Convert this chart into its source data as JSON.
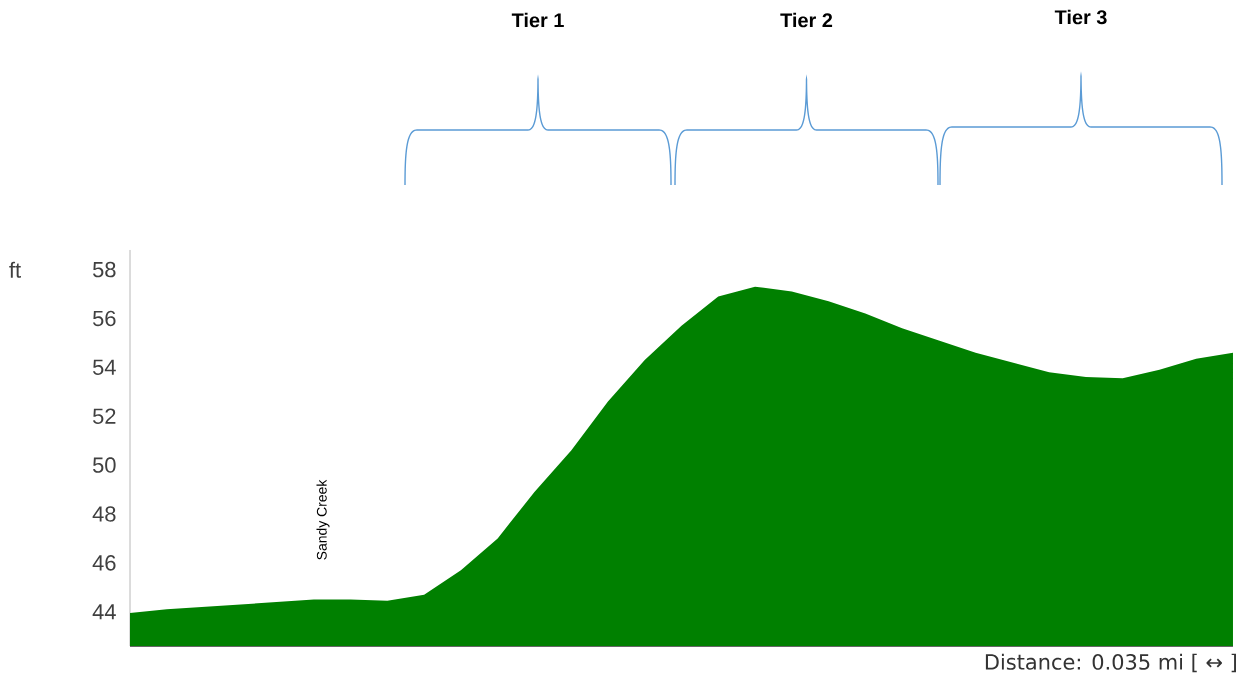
{
  "chart_data": {
    "type": "area",
    "ylabel": "ft",
    "categories": [
      null,
      null,
      null,
      null,
      null,
      null,
      null,
      null,
      null,
      null,
      null,
      null,
      null,
      null,
      null,
      null,
      null,
      null,
      null,
      null,
      null,
      null,
      null,
      null,
      null,
      null,
      null,
      null,
      null,
      null,
      null
    ],
    "values": [
      43.95,
      44.1,
      44.2,
      44.3,
      44.4,
      44.5,
      44.5,
      44.45,
      44.7,
      45.7,
      47.0,
      48.9,
      50.6,
      52.6,
      54.3,
      55.7,
      56.9,
      57.3,
      57.1,
      56.7,
      56.2,
      55.6,
      55.1,
      54.6,
      54.2,
      53.8,
      53.6,
      53.55,
      53.9,
      54.35,
      54.6
    ],
    "color": "#008000",
    "ylim": [
      42.6,
      58.8
    ],
    "yticks": [
      44,
      46,
      48,
      50,
      52,
      54,
      56,
      58
    ],
    "tick_labels": "y",
    "annotations": [
      "Tier 1",
      "Tier 2",
      "Tier 3",
      "Sandy Creek",
      "Distance: 0.035 mi [ ↔ ]"
    ]
  }
}
